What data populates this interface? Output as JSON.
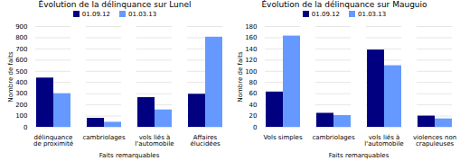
{
  "chart_data": [
    {
      "type": "bar",
      "title": "Évolution de la délinquance sur Lunel",
      "categories": [
        "délinquance\nde proximité",
        "cambriolages",
        "vols liés à\nl'automobile",
        "Affaires\nélucidées"
      ],
      "series": [
        {
          "name": "01.09.12",
          "color": "#000080",
          "values": [
            440,
            80,
            265,
            295
          ]
        },
        {
          "name": "01.03.13",
          "color": "#6699FF",
          "values": [
            300,
            45,
            155,
            805
          ]
        }
      ],
      "xlabel": "Faits remarquables",
      "ylabel": "Nombre de faits",
      "ylim": [
        0,
        900
      ],
      "yticks": [
        0,
        100,
        200,
        300,
        400,
        500,
        600,
        700,
        800,
        900
      ],
      "grid": true,
      "legend": "top"
    },
    {
      "type": "bar",
      "title": "Évolution de la délinquance sur Mauguio",
      "categories": [
        "Vols simples",
        "cambriolages",
        "vols liés à\nl'automobile",
        "violences non\ncrapuleuses"
      ],
      "series": [
        {
          "name": "01.09.12",
          "color": "#000080",
          "values": [
            63,
            25,
            138,
            20
          ]
        },
        {
          "name": "01.03.13",
          "color": "#6699FF",
          "values": [
            163,
            21,
            110,
            15
          ]
        }
      ],
      "xlabel": "Faits remarquables",
      "ylabel": "Nombre de faits",
      "ylim": [
        0,
        180
      ],
      "yticks": [
        0,
        20,
        40,
        60,
        80,
        100,
        120,
        140,
        160,
        180
      ],
      "grid": true,
      "legend": "top"
    }
  ]
}
